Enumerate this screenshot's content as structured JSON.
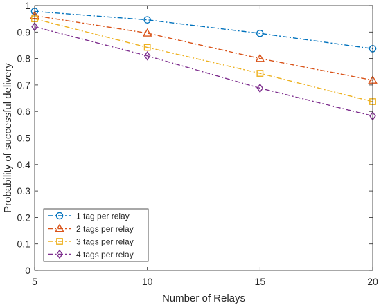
{
  "chart_data": {
    "type": "line",
    "xlabel": "Number of Relays",
    "ylabel": "Probability of successful delivery",
    "x": [
      5,
      10,
      15,
      20
    ],
    "xlim": [
      5,
      20
    ],
    "ylim": [
      0,
      1
    ],
    "xticks": [
      "5",
      "10",
      "15",
      "20"
    ],
    "yticks": [
      "0",
      "0.1",
      "0.2",
      "0.3",
      "0.4",
      "0.5",
      "0.6",
      "0.7",
      "0.8",
      "0.9",
      "1"
    ],
    "grid": false,
    "legend_position": "bottom-left",
    "series": [
      {
        "name": "1 tag per relay",
        "values": [
          0.978,
          0.946,
          0.895,
          0.837
        ],
        "color": "#0072BD",
        "marker": "circle"
      },
      {
        "name": "2 tags per relay",
        "values": [
          0.962,
          0.896,
          0.8,
          0.718
        ],
        "color": "#D95319",
        "marker": "triangle"
      },
      {
        "name": "3 tags per relay",
        "values": [
          0.95,
          0.842,
          0.744,
          0.637
        ],
        "color": "#EDB120",
        "marker": "square"
      },
      {
        "name": "4 tags per relay",
        "values": [
          0.92,
          0.81,
          0.688,
          0.583
        ],
        "color": "#7E2F8E",
        "marker": "diamond"
      }
    ]
  }
}
